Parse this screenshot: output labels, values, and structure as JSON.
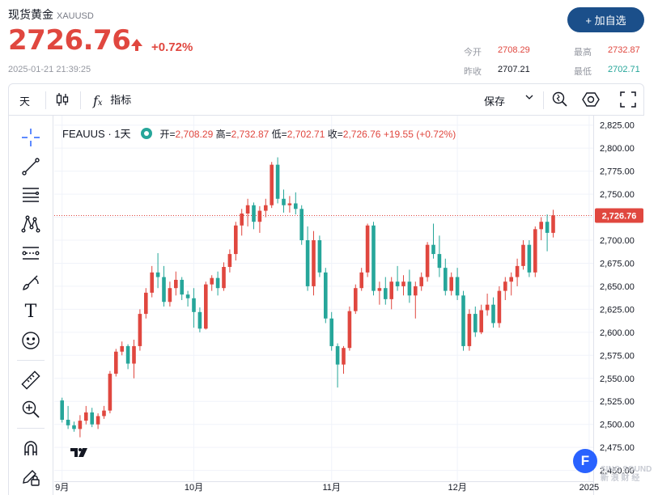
{
  "header": {
    "title": "现货黄金",
    "symbol": "XAUUSD",
    "price": "2726.76",
    "change_pct": "+0.72%",
    "timestamp": "2025-01-21 21:39:25",
    "add_button": "+ 加自选",
    "stats": {
      "open_label": "今开",
      "open": "2708.29",
      "high_label": "最高",
      "high": "2732.87",
      "prev_close_label": "昨收",
      "prev_close": "2707.21",
      "low_label": "最低",
      "low": "2702.71"
    }
  },
  "toolbar": {
    "interval": "天",
    "indicators_label": "指标",
    "save_label": "保存"
  },
  "legend": {
    "name": "FEAUUS · 1天",
    "o_label": "开=",
    "o": "2,708.29",
    "h_label": "高=",
    "h": "2,732.87",
    "l_label": "低=",
    "l": "2,702.71",
    "c_label": "收=",
    "c": "2,726.76",
    "change": "+19.55 (+0.72%)"
  },
  "colors": {
    "up": "#e0473f",
    "down": "#26a69a",
    "accent": "#1b4f8a",
    "grid": "#f0f3fa"
  },
  "icons": [
    "crosshair-icon",
    "trendline-icon",
    "fib-icon",
    "pattern-icon",
    "forecast-icon",
    "brush-icon",
    "text-icon",
    "emoji-icon",
    "ruler-icon",
    "zoom-in-icon",
    "magnet-icon",
    "lock-pencil-icon"
  ],
  "badge": "F",
  "watermark": [
    "SINO SOUND",
    "新 浪 财 经"
  ],
  "chart_data": {
    "type": "candlestick",
    "title": "FEAUUS · 1天",
    "y_ticks": [
      "2,450.00",
      "2,475.00",
      "2,500.00",
      "2,525.00",
      "2,550.00",
      "2,575.00",
      "2,600.00",
      "2,625.00",
      "2,650.00",
      "2,675.00",
      "2,700.00",
      "2,725.00",
      "2,750.00",
      "2,775.00",
      "2,800.00",
      "2,825.00"
    ],
    "ylim": [
      2440,
      2830
    ],
    "x_labels": [
      {
        "label": "9月",
        "index": 0
      },
      {
        "label": "10月",
        "index": 22
      },
      {
        "label": "11月",
        "index": 45
      },
      {
        "label": "12月",
        "index": 66
      },
      {
        "label": "2025",
        "index": 88
      },
      {
        "label": "2",
        "index": 110
      }
    ],
    "last_price_label": "2,726.76",
    "last_price": 2726.76,
    "candles": [
      [
        2526,
        2529,
        2502,
        2505
      ],
      [
        2505,
        2520,
        2495,
        2499
      ],
      [
        2499,
        2503,
        2492,
        2495
      ],
      [
        2495,
        2510,
        2486,
        2504
      ],
      [
        2504,
        2520,
        2500,
        2513
      ],
      [
        2513,
        2518,
        2497,
        2500
      ],
      [
        2500,
        2512,
        2495,
        2509
      ],
      [
        2509,
        2520,
        2506,
        2515
      ],
      [
        2515,
        2558,
        2512,
        2555
      ],
      [
        2555,
        2582,
        2552,
        2579
      ],
      [
        2579,
        2590,
        2575,
        2585
      ],
      [
        2585,
        2587,
        2560,
        2566
      ],
      [
        2566,
        2592,
        2550,
        2585
      ],
      [
        2585,
        2625,
        2580,
        2620
      ],
      [
        2620,
        2648,
        2615,
        2643
      ],
      [
        2643,
        2672,
        2638,
        2665
      ],
      [
        2665,
        2686,
        2648,
        2660
      ],
      [
        2660,
        2672,
        2628,
        2633
      ],
      [
        2633,
        2655,
        2628,
        2648
      ],
      [
        2648,
        2666,
        2640,
        2657
      ],
      [
        2657,
        2660,
        2635,
        2641
      ],
      [
        2641,
        2645,
        2628,
        2637
      ],
      [
        2637,
        2648,
        2605,
        2622
      ],
      [
        2622,
        2627,
        2600,
        2604
      ],
      [
        2604,
        2655,
        2603,
        2652
      ],
      [
        2652,
        2662,
        2645,
        2659
      ],
      [
        2659,
        2666,
        2640,
        2648
      ],
      [
        2648,
        2676,
        2645,
        2671
      ],
      [
        2671,
        2690,
        2665,
        2685
      ],
      [
        2685,
        2720,
        2678,
        2716
      ],
      [
        2716,
        2734,
        2705,
        2729
      ],
      [
        2729,
        2745,
        2715,
        2738
      ],
      [
        2738,
        2741,
        2712,
        2720
      ],
      [
        2720,
        2737,
        2708,
        2732
      ],
      [
        2732,
        2745,
        2725,
        2738
      ],
      [
        2738,
        2785,
        2735,
        2782
      ],
      [
        2782,
        2790,
        2740,
        2745
      ],
      [
        2745,
        2755,
        2730,
        2738
      ],
      [
        2738,
        2748,
        2730,
        2740
      ],
      [
        2740,
        2752,
        2728,
        2734
      ],
      [
        2734,
        2738,
        2695,
        2700
      ],
      [
        2700,
        2715,
        2645,
        2650
      ],
      [
        2650,
        2710,
        2640,
        2700
      ],
      [
        2700,
        2705,
        2660,
        2665
      ],
      [
        2665,
        2670,
        2610,
        2615
      ],
      [
        2615,
        2622,
        2580,
        2585
      ],
      [
        2585,
        2588,
        2540,
        2565
      ],
      [
        2565,
        2585,
        2555,
        2583
      ],
      [
        2583,
        2628,
        2580,
        2623
      ],
      [
        2623,
        2652,
        2620,
        2648
      ],
      [
        2648,
        2670,
        2645,
        2665
      ],
      [
        2665,
        2718,
        2660,
        2716
      ],
      [
        2716,
        2720,
        2640,
        2645
      ],
      [
        2645,
        2655,
        2630,
        2648
      ],
      [
        2648,
        2660,
        2630,
        2636
      ],
      [
        2636,
        2660,
        2625,
        2655
      ],
      [
        2655,
        2672,
        2645,
        2650
      ],
      [
        2650,
        2662,
        2640,
        2655
      ],
      [
        2655,
        2668,
        2632,
        2640
      ],
      [
        2640,
        2655,
        2615,
        2650
      ],
      [
        2650,
        2665,
        2645,
        2660
      ],
      [
        2660,
        2698,
        2655,
        2695
      ],
      [
        2695,
        2718,
        2680,
        2685
      ],
      [
        2685,
        2705,
        2660,
        2670
      ],
      [
        2670,
        2680,
        2640,
        2645
      ],
      [
        2645,
        2665,
        2640,
        2660
      ],
      [
        2660,
        2670,
        2635,
        2640
      ],
      [
        2640,
        2645,
        2580,
        2585
      ],
      [
        2585,
        2625,
        2580,
        2620
      ],
      [
        2620,
        2628,
        2595,
        2600
      ],
      [
        2600,
        2630,
        2598,
        2624
      ],
      [
        2624,
        2642,
        2618,
        2630
      ],
      [
        2630,
        2638,
        2605,
        2610
      ],
      [
        2610,
        2650,
        2605,
        2645
      ],
      [
        2645,
        2660,
        2635,
        2655
      ],
      [
        2655,
        2665,
        2640,
        2660
      ],
      [
        2660,
        2680,
        2650,
        2672
      ],
      [
        2672,
        2700,
        2668,
        2695
      ],
      [
        2695,
        2700,
        2660,
        2665
      ],
      [
        2665,
        2715,
        2660,
        2712
      ],
      [
        2712,
        2725,
        2700,
        2720
      ],
      [
        2720,
        2728,
        2688,
        2708
      ],
      [
        2708,
        2733,
        2703,
        2727
      ]
    ]
  }
}
